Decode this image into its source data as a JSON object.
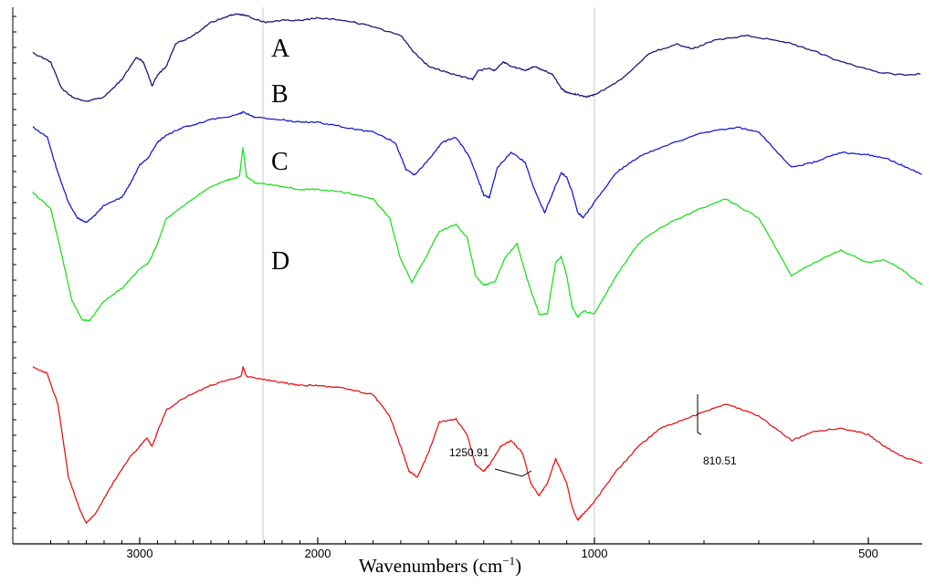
{
  "chart_data": {
    "type": "line",
    "title": "",
    "xlabel": "Wavenumbers (cm",
    "xlabel_sup": "−1",
    "xlabel_close": ")",
    "ylabel": "",
    "xlim": [
      3600,
      300
    ],
    "x_reversed": true,
    "x_ticks": [
      {
        "value": 3000,
        "label": "3000"
      },
      {
        "value": 2000,
        "label": "2000"
      },
      {
        "value": 1000,
        "label": "1000"
      },
      {
        "value": 500,
        "label": "500"
      }
    ],
    "vertical_lines": [
      2200,
      1000
    ],
    "grid": false,
    "legend": "none",
    "y_units": "relative transmittance (arbitrary, stacked)",
    "ylim": [
      0,
      100
    ],
    "series": [
      {
        "name": "A",
        "color": "#1a1a7a",
        "points": [
          [
            3600,
            82
          ],
          [
            3500,
            78
          ],
          [
            3440,
            66
          ],
          [
            3380,
            62
          ],
          [
            3300,
            60
          ],
          [
            3200,
            62
          ],
          [
            3100,
            70
          ],
          [
            3020,
            80
          ],
          [
            2980,
            78
          ],
          [
            2930,
            67
          ],
          [
            2900,
            72
          ],
          [
            2850,
            76
          ],
          [
            2800,
            86
          ],
          [
            2700,
            90
          ],
          [
            2600,
            96
          ],
          [
            2500,
            99
          ],
          [
            2450,
            100
          ],
          [
            2400,
            99
          ],
          [
            2300,
            96
          ],
          [
            2200,
            97
          ],
          [
            2100,
            97
          ],
          [
            2000,
            98
          ],
          [
            1900,
            97
          ],
          [
            1800,
            94
          ],
          [
            1700,
            90
          ],
          [
            1650,
            82
          ],
          [
            1600,
            76
          ],
          [
            1550,
            74
          ],
          [
            1500,
            72
          ],
          [
            1440,
            70
          ],
          [
            1420,
            74
          ],
          [
            1380,
            75
          ],
          [
            1360,
            74
          ],
          [
            1330,
            78
          ],
          [
            1300,
            76
          ],
          [
            1250,
            74
          ],
          [
            1220,
            76
          ],
          [
            1180,
            74
          ],
          [
            1150,
            72
          ],
          [
            1120,
            66
          ],
          [
            1100,
            64
          ],
          [
            1060,
            63
          ],
          [
            1030,
            62
          ],
          [
            1000,
            63
          ],
          [
            950,
            70
          ],
          [
            900,
            82
          ],
          [
            850,
            86
          ],
          [
            820,
            84
          ],
          [
            780,
            88
          ],
          [
            720,
            90
          ],
          [
            650,
            87
          ],
          [
            600,
            83
          ],
          [
            550,
            78
          ],
          [
            480,
            73
          ],
          [
            430,
            72
          ],
          [
            380,
            73
          ],
          [
            320,
            76
          ],
          [
            300,
            77
          ]
        ]
      },
      {
        "name": "B",
        "color": "#1c1cd0",
        "points": [
          [
            3600,
            82
          ],
          [
            3520,
            78
          ],
          [
            3460,
            64
          ],
          [
            3400,
            52
          ],
          [
            3350,
            46
          ],
          [
            3300,
            44
          ],
          [
            3250,
            47
          ],
          [
            3200,
            51
          ],
          [
            3100,
            54
          ],
          [
            3050,
            60
          ],
          [
            3000,
            67
          ],
          [
            2950,
            70
          ],
          [
            2900,
            76
          ],
          [
            2850,
            79
          ],
          [
            2750,
            82
          ],
          [
            2600,
            85
          ],
          [
            2450,
            87
          ],
          [
            2420,
            88
          ],
          [
            2350,
            86
          ],
          [
            2200,
            85
          ],
          [
            2100,
            84
          ],
          [
            2000,
            84
          ],
          [
            1900,
            82
          ],
          [
            1800,
            80
          ],
          [
            1720,
            76
          ],
          [
            1680,
            65
          ],
          [
            1650,
            63
          ],
          [
            1600,
            69
          ],
          [
            1550,
            76
          ],
          [
            1500,
            78
          ],
          [
            1450,
            70
          ],
          [
            1420,
            61
          ],
          [
            1400,
            55
          ],
          [
            1380,
            54
          ],
          [
            1350,
            66
          ],
          [
            1300,
            72
          ],
          [
            1250,
            68
          ],
          [
            1220,
            58
          ],
          [
            1180,
            48
          ],
          [
            1150,
            56
          ],
          [
            1120,
            64
          ],
          [
            1100,
            62
          ],
          [
            1080,
            56
          ],
          [
            1060,
            48
          ],
          [
            1040,
            46
          ],
          [
            1000,
            52
          ],
          [
            960,
            64
          ],
          [
            920,
            70
          ],
          [
            880,
            74
          ],
          [
            800,
            80
          ],
          [
            740,
            82
          ],
          [
            700,
            80
          ],
          [
            640,
            66
          ],
          [
            600,
            68
          ],
          [
            550,
            72
          ],
          [
            500,
            71
          ],
          [
            460,
            69
          ],
          [
            430,
            66
          ],
          [
            400,
            63
          ],
          [
            380,
            64
          ],
          [
            350,
            68
          ],
          [
            300,
            69
          ]
        ]
      },
      {
        "name": "C",
        "color": "#22dd22",
        "points": [
          [
            3600,
            74
          ],
          [
            3500,
            69
          ],
          [
            3440,
            55
          ],
          [
            3380,
            40
          ],
          [
            3320,
            34
          ],
          [
            3280,
            34
          ],
          [
            3200,
            40
          ],
          [
            3100,
            44
          ],
          [
            3000,
            50
          ],
          [
            2950,
            52
          ],
          [
            2900,
            58
          ],
          [
            2850,
            66
          ],
          [
            2700,
            72
          ],
          [
            2600,
            76
          ],
          [
            2500,
            78
          ],
          [
            2440,
            79
          ],
          [
            2420,
            88
          ],
          [
            2400,
            79
          ],
          [
            2350,
            77
          ],
          [
            2200,
            76
          ],
          [
            2100,
            75
          ],
          [
            2000,
            75
          ],
          [
            1900,
            74
          ],
          [
            1800,
            72
          ],
          [
            1740,
            66
          ],
          [
            1700,
            53
          ],
          [
            1660,
            46
          ],
          [
            1620,
            52
          ],
          [
            1560,
            62
          ],
          [
            1500,
            64
          ],
          [
            1460,
            60
          ],
          [
            1430,
            48
          ],
          [
            1400,
            45
          ],
          [
            1360,
            46
          ],
          [
            1320,
            54
          ],
          [
            1280,
            58
          ],
          [
            1240,
            46
          ],
          [
            1200,
            36
          ],
          [
            1170,
            36
          ],
          [
            1140,
            52
          ],
          [
            1120,
            54
          ],
          [
            1100,
            48
          ],
          [
            1080,
            38
          ],
          [
            1060,
            35
          ],
          [
            1040,
            37
          ],
          [
            1000,
            36
          ],
          [
            960,
            48
          ],
          [
            920,
            58
          ],
          [
            880,
            63
          ],
          [
            820,
            68
          ],
          [
            760,
            72
          ],
          [
            700,
            66
          ],
          [
            640,
            48
          ],
          [
            600,
            52
          ],
          [
            550,
            56
          ],
          [
            500,
            52
          ],
          [
            470,
            53
          ],
          [
            440,
            50
          ],
          [
            410,
            46
          ],
          [
            390,
            44
          ],
          [
            360,
            47
          ],
          [
            300,
            48
          ]
        ]
      },
      {
        "name": "D",
        "color": "#e01a1a",
        "points": [
          [
            3600,
            56
          ],
          [
            3520,
            54
          ],
          [
            3460,
            44
          ],
          [
            3400,
            20
          ],
          [
            3340,
            10
          ],
          [
            3300,
            5
          ],
          [
            3250,
            8
          ],
          [
            3150,
            18
          ],
          [
            3050,
            27
          ],
          [
            3000,
            30
          ],
          [
            2960,
            33
          ],
          [
            2930,
            30
          ],
          [
            2900,
            35
          ],
          [
            2850,
            42
          ],
          [
            2750,
            46
          ],
          [
            2600,
            50
          ],
          [
            2500,
            52
          ],
          [
            2430,
            53
          ],
          [
            2420,
            56
          ],
          [
            2400,
            53
          ],
          [
            2300,
            52
          ],
          [
            2200,
            51
          ],
          [
            2100,
            50
          ],
          [
            2000,
            50
          ],
          [
            1900,
            49
          ],
          [
            1800,
            47
          ],
          [
            1740,
            40
          ],
          [
            1700,
            30
          ],
          [
            1670,
            22
          ],
          [
            1640,
            20
          ],
          [
            1600,
            28
          ],
          [
            1560,
            38
          ],
          [
            1500,
            39
          ],
          [
            1460,
            34
          ],
          [
            1430,
            24
          ],
          [
            1400,
            22
          ],
          [
            1380,
            24
          ],
          [
            1340,
            30
          ],
          [
            1300,
            32
          ],
          [
            1260,
            28
          ],
          [
            1230,
            18
          ],
          [
            1200,
            14
          ],
          [
            1170,
            18
          ],
          [
            1140,
            26
          ],
          [
            1120,
            22
          ],
          [
            1100,
            18
          ],
          [
            1080,
            10
          ],
          [
            1060,
            6
          ],
          [
            1040,
            8
          ],
          [
            1000,
            12
          ],
          [
            960,
            22
          ],
          [
            920,
            30
          ],
          [
            880,
            36
          ],
          [
            820,
            40
          ],
          [
            760,
            44
          ],
          [
            700,
            40
          ],
          [
            640,
            32
          ],
          [
            600,
            35
          ],
          [
            550,
            36
          ],
          [
            500,
            34
          ],
          [
            470,
            30
          ],
          [
            440,
            27
          ],
          [
            410,
            25
          ],
          [
            390,
            24
          ],
          [
            360,
            27
          ],
          [
            300,
            30
          ]
        ]
      }
    ],
    "series_labels": [
      "A",
      "B",
      "C",
      "D"
    ],
    "annotations": [
      {
        "text": "1250.91",
        "x": 1250.91
      },
      {
        "text": "810.51",
        "x": 810.51
      }
    ]
  }
}
